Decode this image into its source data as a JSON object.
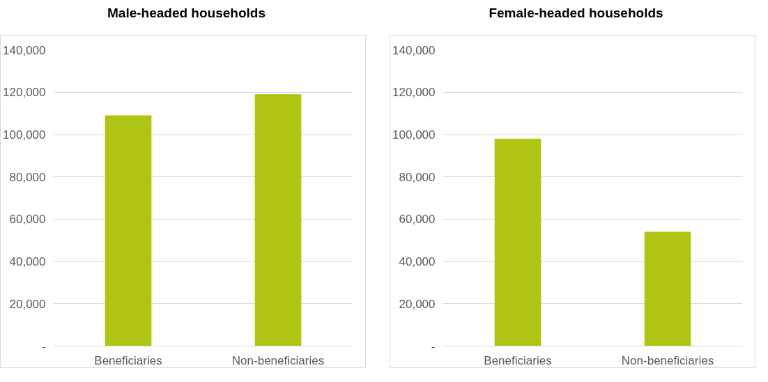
{
  "chart_data": [
    {
      "type": "bar",
      "title": "Male-headed households",
      "categories": [
        "Beneficiaries",
        "Non-beneficiaries"
      ],
      "values": [
        109000,
        119000
      ],
      "color": "#b0c414",
      "ylim": [
        0,
        140000
      ],
      "yticks": [
        {
          "value": 0,
          "label": "-"
        },
        {
          "value": 20000,
          "label": "20,000"
        },
        {
          "value": 40000,
          "label": "40,000"
        },
        {
          "value": 60000,
          "label": "60,000"
        },
        {
          "value": 80000,
          "label": "80,000"
        },
        {
          "value": 100000,
          "label": "100,000"
        },
        {
          "value": 120000,
          "label": "120,000"
        },
        {
          "value": 140000,
          "label": "140,000"
        }
      ],
      "grid": "y"
    },
    {
      "type": "bar",
      "title": "Female-headed households",
      "categories": [
        "Beneficiaries",
        "Non-beneficiaries"
      ],
      "values": [
        98000,
        54000
      ],
      "color": "#b0c414",
      "ylim": [
        0,
        140000
      ],
      "yticks": [
        {
          "value": 0,
          "label": "-"
        },
        {
          "value": 20000,
          "label": "20,000"
        },
        {
          "value": 40000,
          "label": "40,000"
        },
        {
          "value": 60000,
          "label": "60,000"
        },
        {
          "value": 80000,
          "label": "80,000"
        },
        {
          "value": 100000,
          "label": "100,000"
        },
        {
          "value": 120000,
          "label": "120,000"
        },
        {
          "value": 140000,
          "label": "140,000"
        }
      ],
      "grid": "y"
    }
  ]
}
